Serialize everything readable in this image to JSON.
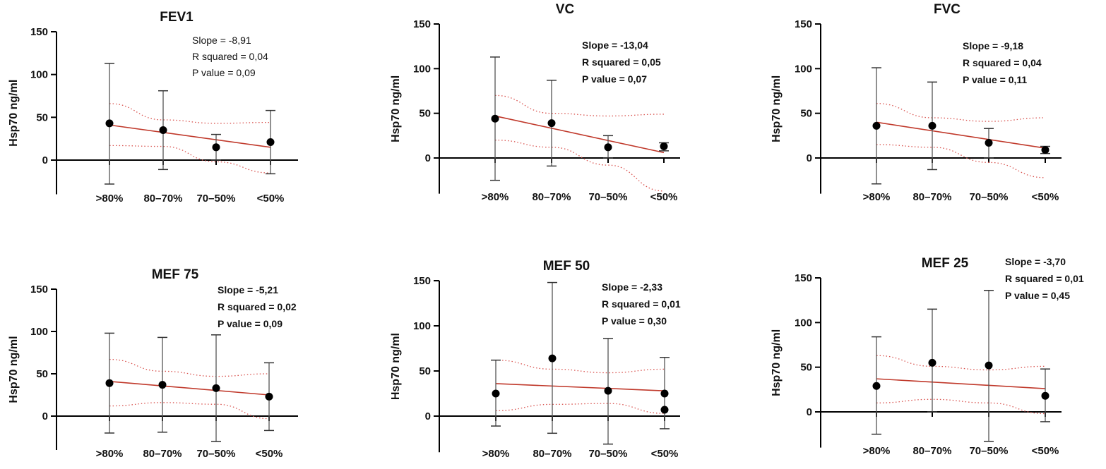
{
  "chart_data": [
    {
      "type": "scatter",
      "title": "FEV1",
      "xlabel": "",
      "ylabel": "Hsp70 ng/ml",
      "categories": [
        ">80%",
        "80–70%",
        "70–50%",
        "<50%"
      ],
      "ylim": [
        -40,
        150
      ],
      "yticks": [
        0,
        50,
        100,
        150
      ],
      "points": [
        {
          "cat": 0,
          "mean": 43,
          "high": 113,
          "low": -28
        },
        {
          "cat": 1,
          "mean": 35,
          "high": 81,
          "low": -11
        },
        {
          "cat": 2,
          "mean": 15,
          "high": 30,
          "low": 0
        },
        {
          "cat": 3,
          "mean": 21,
          "high": 58,
          "low": -16
        }
      ],
      "fit": {
        "start": 41,
        "end": 15
      },
      "ci_upper": [
        66,
        47,
        43,
        44
      ],
      "ci_lower": [
        17,
        16,
        -2,
        -15
      ],
      "stats": [
        "Slope = -8,91",
        "R squared = 0,04",
        "P value = 0,09"
      ],
      "stats_bold": false
    },
    {
      "type": "scatter",
      "title": "VC",
      "xlabel": "",
      "ylabel": "Hsp70 ng/ml",
      "categories": [
        ">80%",
        "80–70%",
        "70–50%",
        "<50%"
      ],
      "ylim": [
        -40,
        150
      ],
      "yticks": [
        0,
        50,
        100,
        150
      ],
      "points": [
        {
          "cat": 0,
          "mean": 44,
          "high": 113,
          "low": -25
        },
        {
          "cat": 1,
          "mean": 39,
          "high": 87,
          "low": -9
        },
        {
          "cat": 2,
          "mean": 12,
          "high": 25,
          "low": 0
        },
        {
          "cat": 3,
          "mean": 13,
          "high": 17,
          "low": 8
        }
      ],
      "fit": {
        "start": 47,
        "end": 6
      },
      "ci_upper": [
        70,
        50,
        47,
        49
      ],
      "ci_lower": [
        20,
        12,
        -8,
        -37
      ],
      "stats": [
        "Slope = -13,04",
        "R squared = 0,05",
        "P value = 0,07"
      ],
      "stats_bold": true
    },
    {
      "type": "scatter",
      "title": "FVC",
      "xlabel": "",
      "ylabel": "Hsp70 ng/ml",
      "categories": [
        ">80%",
        "80–70%",
        "70–50%",
        "<50%"
      ],
      "ylim": [
        -40,
        150
      ],
      "yticks": [
        0,
        50,
        100,
        150
      ],
      "points": [
        {
          "cat": 0,
          "mean": 36,
          "high": 101,
          "low": -29
        },
        {
          "cat": 1,
          "mean": 36,
          "high": 85,
          "low": -13
        },
        {
          "cat": 2,
          "mean": 17,
          "high": 33,
          "low": 0
        },
        {
          "cat": 3,
          "mean": 9,
          "high": 13,
          "low": 5
        }
      ],
      "fit": {
        "start": 40,
        "end": 11
      },
      "ci_upper": [
        61,
        45,
        41,
        45
      ],
      "ci_lower": [
        15,
        12,
        -5,
        -22
      ],
      "stats": [
        "Slope = -9,18",
        "R squared = 0,04",
        "P value = 0,11"
      ],
      "stats_bold": true
    },
    {
      "type": "scatter",
      "title": "MEF 75",
      "xlabel": "",
      "ylabel": "Hsp70 ng/ml",
      "categories": [
        ">80%",
        "80–70%",
        "70–50%",
        "<50%"
      ],
      "ylim": [
        -40,
        150
      ],
      "yticks": [
        0,
        50,
        100,
        150
      ],
      "points": [
        {
          "cat": 0,
          "mean": 39,
          "high": 98,
          "low": -20
        },
        {
          "cat": 1,
          "mean": 37,
          "high": 93,
          "low": -19
        },
        {
          "cat": 2,
          "mean": 33,
          "high": 96,
          "low": -30
        },
        {
          "cat": 3,
          "mean": 23,
          "high": 63,
          "low": -17
        }
      ],
      "fit": {
        "start": 41,
        "end": 25
      },
      "ci_upper": [
        67,
        53,
        47,
        50
      ],
      "ci_lower": [
        12,
        16,
        14,
        -3
      ],
      "stats": [
        "Slope = -5,21",
        "R squared = 0,02",
        "P value = 0,09"
      ],
      "stats_bold": true
    },
    {
      "type": "scatter",
      "title": "MEF 50",
      "xlabel": "",
      "ylabel": "Hsp70 ng/ml",
      "categories": [
        ">80%",
        "80–70%",
        "70–50%",
        "<50%"
      ],
      "ylim": [
        -40,
        150
      ],
      "yticks": [
        0,
        50,
        100,
        150
      ],
      "points": [
        {
          "cat": 0,
          "mean": 25,
          "high": 62,
          "low": -11
        },
        {
          "cat": 1,
          "mean": 64,
          "high": 148,
          "low": -19
        },
        {
          "cat": 2,
          "mean": 28,
          "high": 86,
          "low": -31
        },
        {
          "cat": 3,
          "mean": 25,
          "high": 65,
          "low": -14
        },
        {
          "cat": 3,
          "mean": 7,
          "high": null,
          "low": null
        }
      ],
      "fit": {
        "start": 36,
        "end": 28
      },
      "ci_upper": [
        62,
        52,
        48,
        52
      ],
      "ci_lower": [
        6,
        13,
        14,
        3
      ],
      "stats": [
        "Slope = -2,33",
        "R squared = 0,01",
        "P value = 0,30"
      ],
      "stats_bold": true
    },
    {
      "type": "scatter",
      "title": "MEF 25",
      "xlabel": "",
      "ylabel": "Hsp70 ng/ml",
      "categories": [
        ">80%",
        "80–70%",
        "70–50%",
        "<50%"
      ],
      "ylim": [
        -40,
        150
      ],
      "yticks": [
        0,
        50,
        100,
        150
      ],
      "points": [
        {
          "cat": 0,
          "mean": 29,
          "high": 84,
          "low": -25
        },
        {
          "cat": 1,
          "mean": 55,
          "high": 115,
          "low": 0
        },
        {
          "cat": 2,
          "mean": 52,
          "high": 136,
          "low": -33
        },
        {
          "cat": 3,
          "mean": 18,
          "high": 48,
          "low": -11
        }
      ],
      "fit": {
        "start": 37,
        "end": 26
      },
      "ci_upper": [
        63,
        51,
        47,
        51
      ],
      "ci_lower": [
        10,
        14,
        10,
        -2
      ],
      "stats": [
        "Slope = -3,70",
        "R squared = 0,01",
        "P value = 0,45"
      ],
      "stats_bold": true
    }
  ]
}
